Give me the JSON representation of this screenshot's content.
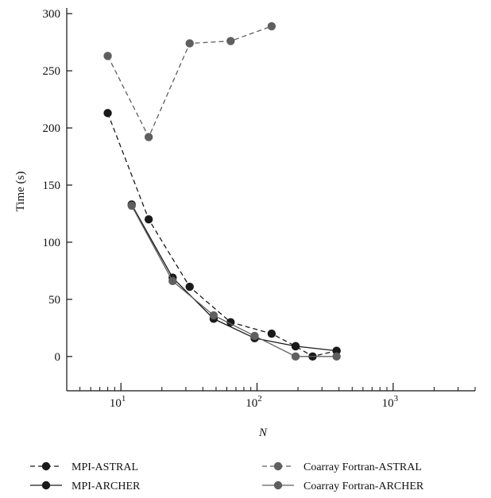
{
  "chart_data": {
    "type": "line",
    "xlabel": "N",
    "ylabel": "Time (s)",
    "xscale": "log",
    "xlim": [
      4,
      4000
    ],
    "ylim": [
      -30,
      305
    ],
    "yticks": [
      0,
      50,
      100,
      150,
      200,
      250,
      300
    ],
    "xticks": [
      {
        "value": 10,
        "base": "10",
        "exp": "1"
      },
      {
        "value": 100,
        "base": "10",
        "exp": "2"
      },
      {
        "value": 1000,
        "base": "10",
        "exp": "3"
      }
    ],
    "grid": false,
    "legend_position": "bottom",
    "series": [
      {
        "name": "MPI-ASTRAL",
        "color": "#1a1a1a",
        "dash": true,
        "x": [
          8,
          16,
          32,
          64,
          128,
          192,
          256,
          384
        ],
        "y": [
          213,
          120,
          61,
          30,
          20,
          9,
          0,
          5
        ]
      },
      {
        "name": "MPI-ARCHER",
        "color": "#1a1a1a",
        "dash": false,
        "x": [
          12,
          24,
          48,
          96,
          192,
          384
        ],
        "y": [
          133,
          69,
          33,
          16,
          9,
          5
        ]
      },
      {
        "name": "Coarray Fortran-ASTRAL",
        "color": "#5f5f5f",
        "dash": true,
        "x": [
          8,
          16,
          32,
          64,
          128
        ],
        "y": [
          263,
          192,
          274,
          276,
          289
        ]
      },
      {
        "name": "Coarray Fortran-ARCHER",
        "color": "#5f5f5f",
        "dash": false,
        "x": [
          12,
          24,
          48,
          96,
          192,
          384
        ],
        "y": [
          132,
          66,
          36,
          18,
          0,
          0
        ]
      }
    ]
  }
}
